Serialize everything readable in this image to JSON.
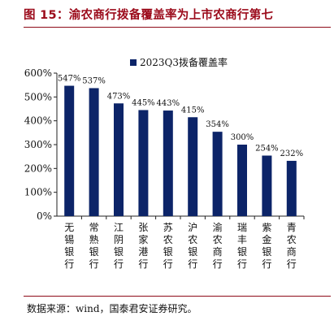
{
  "figure": {
    "title": "图 15：渝农商行拨备覆盖率为上市农商行第七",
    "source_note": "数据来源：wind，国泰君安证券研究。"
  },
  "colors": {
    "bar": "#0c2468",
    "title": "#9b0a1a",
    "rule": "#8e0a18"
  },
  "chart_data": {
    "type": "bar",
    "legend_position": "top-center",
    "grid": false,
    "categories": [
      "无锡银行",
      "常熟银行",
      "江阴银行",
      "张家港行",
      "苏农银行",
      "沪农银行",
      "渝农商行",
      "瑞丰银行",
      "紫金银行",
      "青农商行"
    ],
    "series": [
      {
        "name": "2023Q3拨备覆盖率",
        "values": [
          547,
          537,
          473,
          445,
          443,
          415,
          354,
          300,
          254,
          232
        ]
      }
    ],
    "value_labels": [
      "547%",
      "537%",
      "473%",
      "445%",
      "443%",
      "415%",
      "354%",
      "300%",
      "254%",
      "232%"
    ],
    "ylim": [
      0,
      600
    ],
    "y_ticks": [
      0,
      100,
      200,
      300,
      400,
      500,
      600
    ],
    "y_tick_labels": [
      "0%",
      "100%",
      "200%",
      "300%",
      "400%",
      "500%",
      "600%"
    ]
  }
}
